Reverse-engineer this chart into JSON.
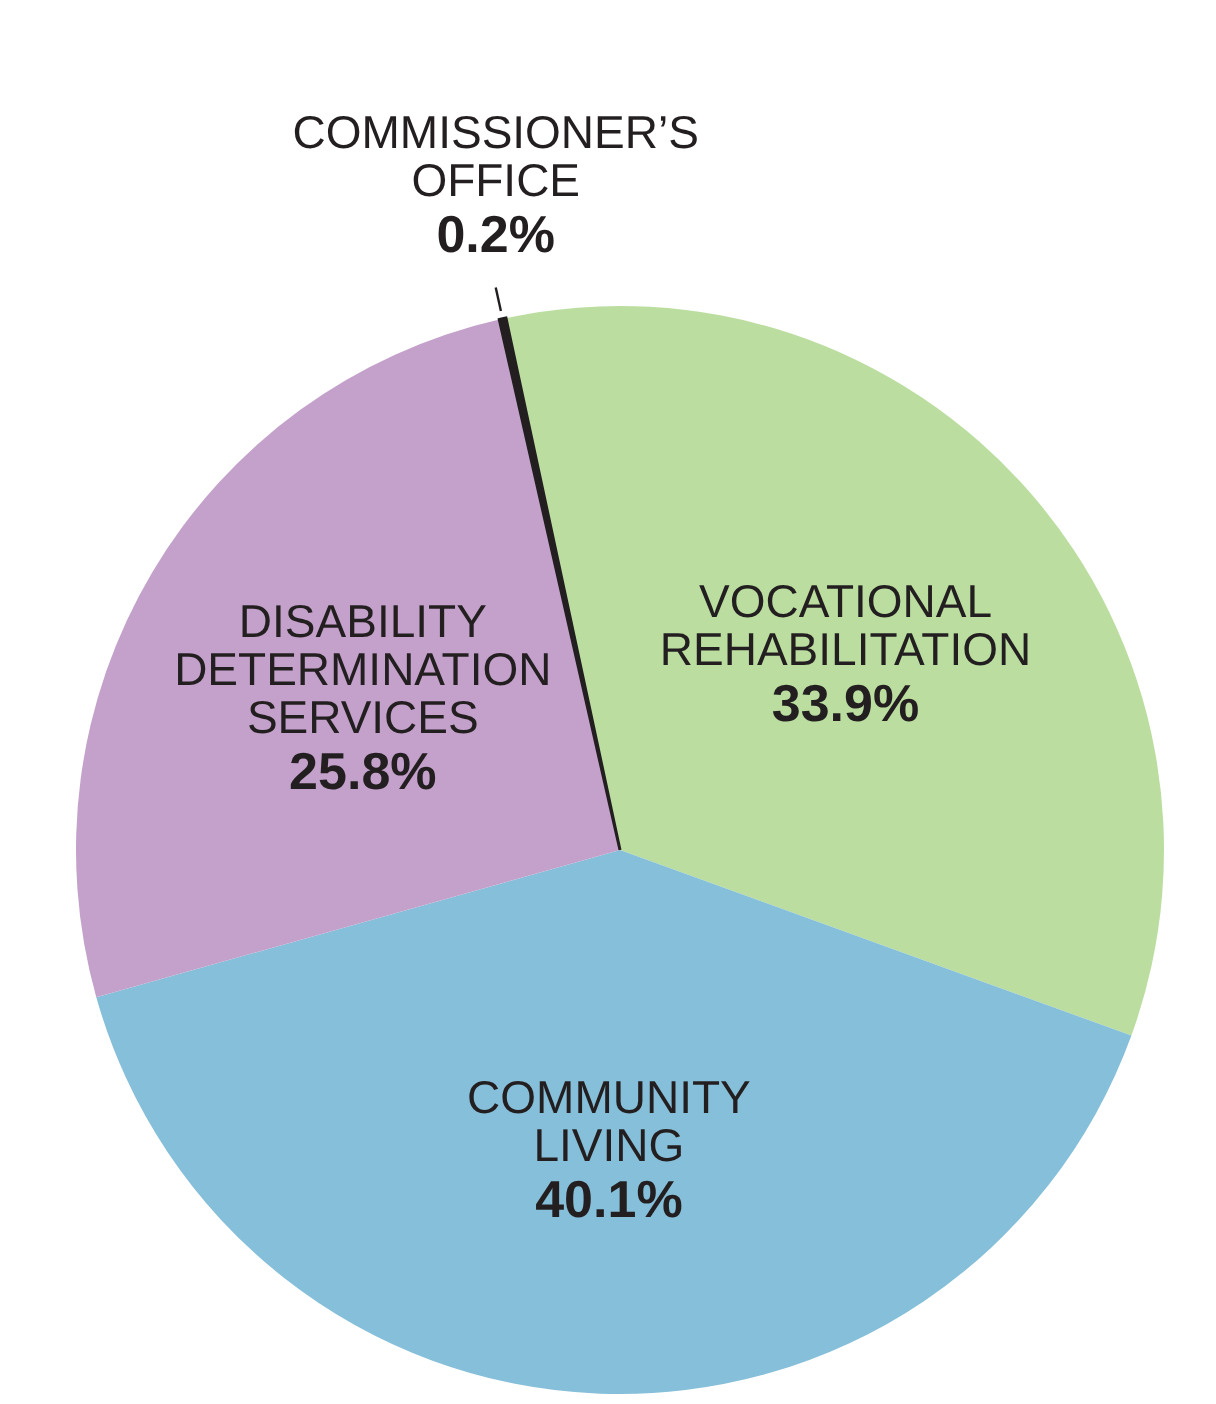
{
  "chart_data": {
    "type": "pie",
    "categories": [
      "VOCATIONAL REHABILITATION",
      "COMMUNITY LIVING",
      "DISABILITY DETERMINATION SERVICES",
      "COMMISSIONER’S OFFICE"
    ],
    "values": [
      33.9,
      40.1,
      25.8,
      0.2
    ],
    "colors": [
      "#bbdea0",
      "#86bfd9",
      "#c4a1cb",
      "#231f20"
    ],
    "value_labels": [
      "33.9%",
      "40.1%",
      "25.8%",
      "0.2%"
    ]
  }
}
